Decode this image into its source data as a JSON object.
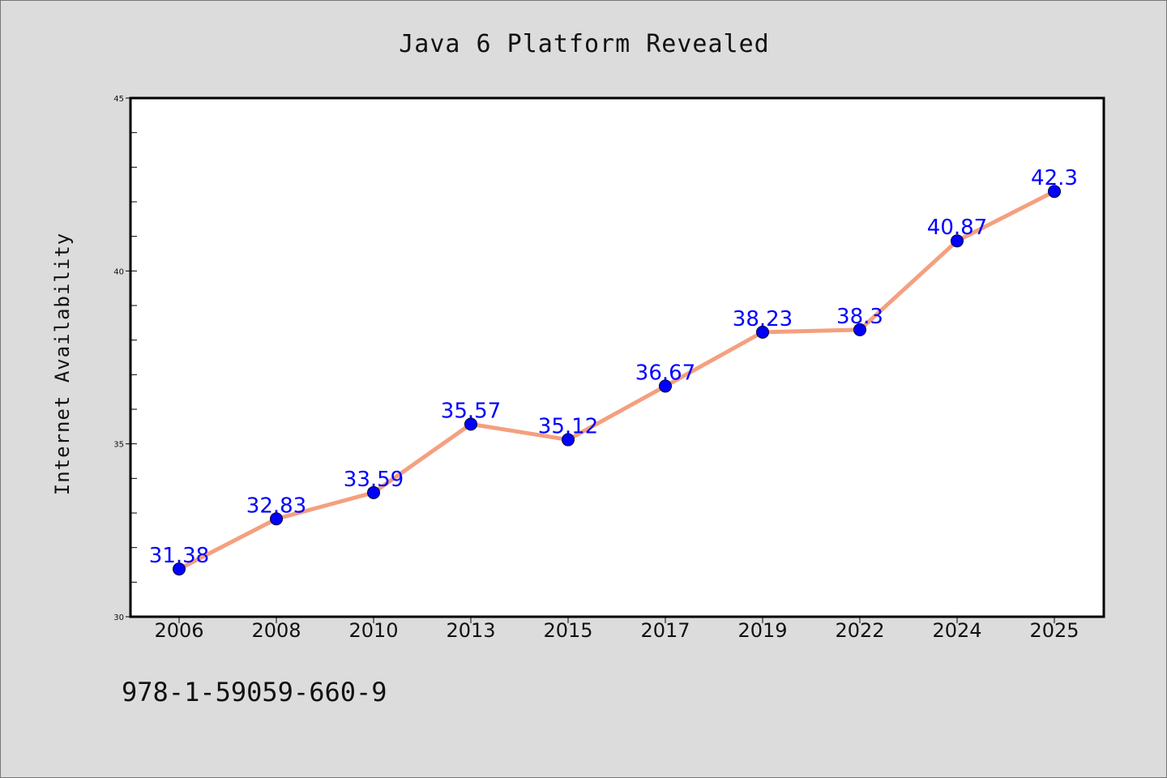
{
  "chart_data": {
    "type": "line",
    "title": "Java 6 Platform Revealed",
    "xlabel": "",
    "ylabel": "Internet Availability",
    "footnote": "978-1-59059-660-9",
    "categories": [
      "2006",
      "2008",
      "2010",
      "2013",
      "2015",
      "2017",
      "2019",
      "2022",
      "2024",
      "2025"
    ],
    "values": [
      31.38,
      32.83,
      33.59,
      35.57,
      35.12,
      36.67,
      38.23,
      38.3,
      40.87,
      42.3
    ],
    "value_labels": [
      "31.38",
      "32.83",
      "33.59",
      "35.57",
      "35.12",
      "36.67",
      "38.23",
      "38.3",
      "40.87",
      "42.3"
    ],
    "ylim": [
      30,
      45
    ],
    "yticks": [
      "30",
      "35",
      "40",
      "45"
    ],
    "y_minor_step": 1,
    "grid": false,
    "legend": "none",
    "line_color": "#f4a07f",
    "marker_color": "#0000ff",
    "label_color": "#0000ff"
  }
}
